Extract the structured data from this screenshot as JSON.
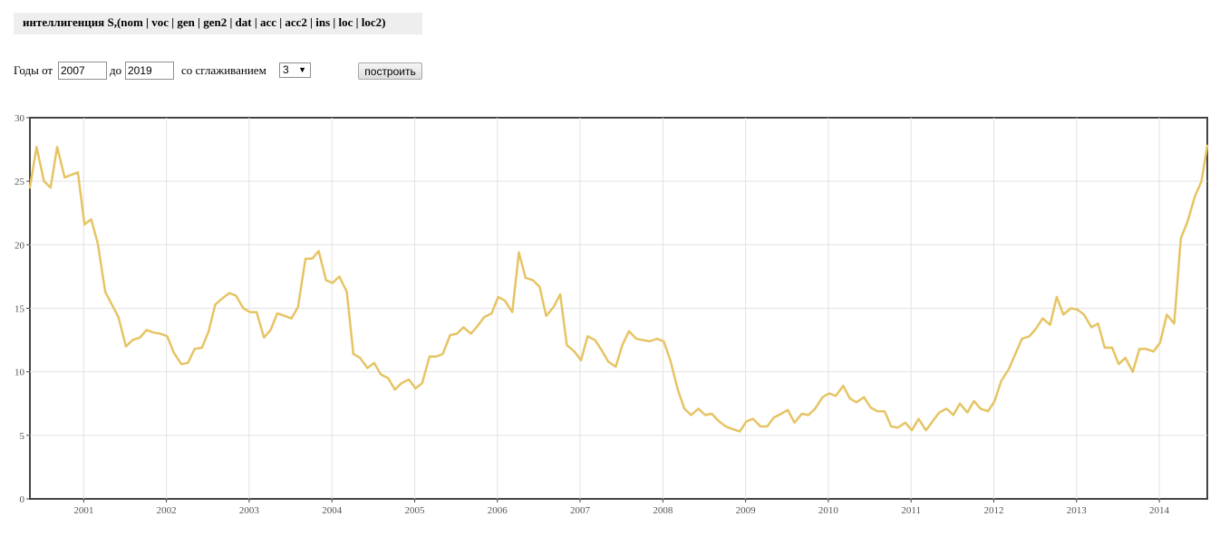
{
  "query": {
    "text": "интеллигенция  S,(nom | voc | gen | gen2 | dat | acc | acc2 | ins | loc | loc2)"
  },
  "controls": {
    "years_from_label": "Годы от",
    "year_from": "2007",
    "to_label": "до",
    "year_to": "2019",
    "smoothing_label": "со сглаживанием",
    "smoothing_value": "3",
    "build_label": "построить"
  },
  "chart_data": {
    "type": "line",
    "title": "",
    "xlabel": "",
    "ylabel": "",
    "ylim": [
      0,
      30
    ],
    "yticks": [
      0,
      5,
      10,
      15,
      20,
      25,
      30
    ],
    "xlim": [
      2000.35,
      2014.58
    ],
    "xticks": [
      2001,
      2002,
      2003,
      2004,
      2005,
      2006,
      2007,
      2008,
      2009,
      2010,
      2011,
      2012,
      2013,
      2014
    ],
    "xtick_labels": [
      "2001",
      "2002",
      "2003",
      "2004",
      "2005",
      "2006",
      "2007",
      "2008",
      "2009",
      "2010",
      "2011",
      "2012",
      "2013",
      "2014"
    ],
    "grid": true,
    "line_color": "#e6c464",
    "series": [
      {
        "x": [
          2000.35,
          2000.43,
          2000.52,
          2000.6,
          2000.68,
          2000.77,
          2000.85,
          2000.93,
          2001.01,
          2001.09,
          2001.17,
          2001.26,
          2001.34,
          2001.42,
          2001.51,
          2001.59,
          2001.68,
          2001.76,
          2001.84,
          2001.93,
          2002.01,
          2002.09,
          2002.18,
          2002.26,
          2002.34,
          2002.43,
          2002.51,
          2002.59,
          2002.68,
          2002.76,
          2002.84,
          2002.93,
          2003.01,
          2003.09,
          2003.18,
          2003.26,
          2003.34,
          2003.43,
          2003.51,
          2003.59,
          2003.68,
          2003.76,
          2003.84,
          2003.93,
          2004.01,
          2004.09,
          2004.18,
          2004.26,
          2004.34,
          2004.43,
          2004.51,
          2004.59,
          2004.68,
          2004.76,
          2004.84,
          2004.93,
          2005.01,
          2005.09,
          2005.18,
          2005.26,
          2005.34,
          2005.43,
          2005.51,
          2005.59,
          2005.68,
          2005.76,
          2005.84,
          2005.93,
          2006.01,
          2006.09,
          2006.18,
          2006.26,
          2006.34,
          2006.43,
          2006.51,
          2006.59,
          2006.68,
          2006.76,
          2006.84,
          2006.93,
          2007.01,
          2007.09,
          2007.18,
          2007.26,
          2007.34,
          2007.43,
          2007.51,
          2007.59,
          2007.68,
          2007.76,
          2007.84,
          2007.93,
          2008.01,
          2008.09,
          2008.18,
          2008.26,
          2008.34,
          2008.43,
          2008.51,
          2008.59,
          2008.68,
          2008.76,
          2008.84,
          2008.93,
          2009.01,
          2009.09,
          2009.18,
          2009.26,
          2009.34,
          2009.43,
          2009.51,
          2009.59,
          2009.68,
          2009.76,
          2009.84,
          2009.93,
          2010.01,
          2010.09,
          2010.18,
          2010.26,
          2010.34,
          2010.43,
          2010.51,
          2010.59,
          2010.68,
          2010.76,
          2010.84,
          2010.93,
          2011.01,
          2011.09,
          2011.18,
          2011.26,
          2011.34,
          2011.43,
          2011.51,
          2011.59,
          2011.68,
          2011.76,
          2011.84,
          2011.93,
          2012.01,
          2012.09,
          2012.18,
          2012.26,
          2012.34,
          2012.43,
          2012.51,
          2012.59,
          2012.68,
          2012.76,
          2012.84,
          2012.93,
          2013.01,
          2013.09,
          2013.18,
          2013.26,
          2013.34,
          2013.43,
          2013.51,
          2013.59,
          2013.68,
          2013.76,
          2013.84,
          2013.93,
          2014.01,
          2014.09,
          2014.18,
          2014.26,
          2014.34,
          2014.43,
          2014.51,
          2014.58
        ],
        "y": [
          24.5,
          27.7,
          25.0,
          24.5,
          27.7,
          25.3,
          25.5,
          25.7,
          21.6,
          22.0,
          20.1,
          16.3,
          15.3,
          14.3,
          12.0,
          12.5,
          12.7,
          13.3,
          13.1,
          13.0,
          12.8,
          11.5,
          10.6,
          10.7,
          11.8,
          11.9,
          13.2,
          15.3,
          15.8,
          16.2,
          16.0,
          15.0,
          14.7,
          14.7,
          12.7,
          13.3,
          14.6,
          14.4,
          14.2,
          15.1,
          18.9,
          18.9,
          19.5,
          17.2,
          17.0,
          17.5,
          16.3,
          11.4,
          11.1,
          10.3,
          10.7,
          9.8,
          9.5,
          8.6,
          9.1,
          9.4,
          8.7,
          9.1,
          11.2,
          11.2,
          11.4,
          12.9,
          13.0,
          13.5,
          13.0,
          13.6,
          14.3,
          14.6,
          15.9,
          15.6,
          14.7,
          19.4,
          17.4,
          17.2,
          16.7,
          14.4,
          15.1,
          16.1,
          12.1,
          11.6,
          10.9,
          12.8,
          12.5,
          11.7,
          10.8,
          10.4,
          12.1,
          13.2,
          12.6,
          12.5,
          12.4,
          12.6,
          12.4,
          10.9,
          8.6,
          7.1,
          6.6,
          7.1,
          6.6,
          6.7,
          6.1,
          5.7,
          5.5,
          5.3,
          6.1,
          6.3,
          5.7,
          5.7,
          6.4,
          6.7,
          7.0,
          6.0,
          6.7,
          6.6,
          7.1,
          8.0,
          8.3,
          8.1,
          8.9,
          7.9,
          7.6,
          8.0,
          7.2,
          6.9,
          6.9,
          5.7,
          5.6,
          6.0,
          5.4,
          6.3,
          5.4,
          6.1,
          6.8,
          7.1,
          6.6,
          7.5,
          6.8,
          7.7,
          7.1,
          6.9,
          7.7,
          9.3,
          10.2,
          11.4,
          12.6,
          12.8,
          13.4,
          14.2,
          13.7,
          15.9,
          14.5,
          15.0,
          14.9,
          14.5,
          13.5,
          13.8,
          11.9,
          11.9,
          10.6,
          11.1,
          10.0,
          11.8,
          11.8,
          11.6,
          12.3,
          14.5,
          13.8,
          20.5,
          21.8,
          23.8,
          25.0,
          27.8
        ]
      }
    ]
  }
}
